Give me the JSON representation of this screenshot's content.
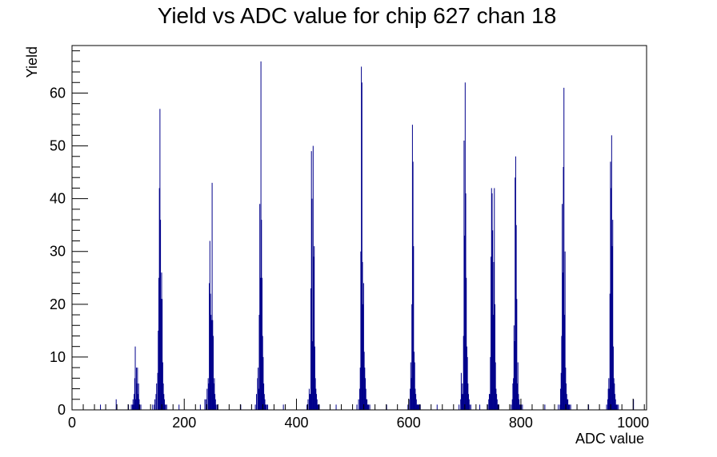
{
  "chart_data": {
    "type": "bar",
    "title": "Yield vs ADC value for chip 627 chan 18",
    "xlabel": "ADC value",
    "ylabel": "Yield",
    "xlim": [
      0,
      1024
    ],
    "ylim": [
      0,
      69
    ],
    "x_ticks": [
      0,
      200,
      400,
      600,
      800,
      1000
    ],
    "y_ticks": [
      0,
      10,
      20,
      30,
      40,
      50,
      60
    ],
    "grid": false,
    "legend": "none",
    "bin_width": 1,
    "color": "#00008b",
    "x": [
      50,
      78,
      100,
      105,
      107,
      108,
      109,
      110,
      111,
      112,
      113,
      114,
      115,
      116,
      117,
      118,
      119,
      120,
      122,
      143,
      146,
      147,
      149,
      150,
      152,
      153,
      154,
      155,
      156,
      157,
      158,
      159,
      160,
      161,
      162,
      163,
      164,
      165,
      166,
      168,
      190,
      228,
      236,
      238,
      240,
      242,
      243,
      244,
      245,
      246,
      247,
      248,
      249,
      250,
      251,
      252,
      253,
      254,
      255,
      256,
      258,
      300,
      326,
      328,
      330,
      331,
      332,
      333,
      334,
      335,
      336,
      337,
      338,
      339,
      340,
      341,
      342,
      343,
      344,
      345,
      346,
      348,
      376,
      418,
      420,
      422,
      423,
      424,
      425,
      426,
      427,
      428,
      429,
      430,
      431,
      432,
      433,
      434,
      435,
      436,
      437,
      438,
      440,
      470,
      507,
      510,
      512,
      513,
      514,
      515,
      516,
      517,
      518,
      519,
      520,
      521,
      522,
      523,
      524,
      525,
      526,
      527,
      528,
      530,
      560,
      598,
      600,
      602,
      603,
      604,
      605,
      606,
      607,
      608,
      609,
      610,
      611,
      612,
      613,
      614,
      615,
      616,
      617,
      618,
      620,
      650,
      689,
      692,
      693,
      694,
      695,
      696,
      697,
      698,
      699,
      700,
      701,
      702,
      703,
      704,
      705,
      706,
      707,
      708,
      710,
      726,
      740,
      742,
      743,
      744,
      745,
      746,
      747,
      748,
      749,
      750,
      751,
      752,
      753,
      754,
      755,
      756,
      757,
      758,
      760,
      782,
      784,
      785,
      786,
      787,
      788,
      789,
      790,
      791,
      792,
      793,
      794,
      795,
      796,
      797,
      798,
      799,
      800,
      802,
      842,
      866,
      869,
      870,
      871,
      872,
      873,
      874,
      875,
      876,
      877,
      878,
      879,
      880,
      881,
      882,
      883,
      884,
      885,
      886,
      888,
      920,
      952,
      954,
      955,
      956,
      957,
      958,
      959,
      960,
      961,
      962,
      963,
      964,
      965,
      966,
      967,
      968,
      969,
      970,
      971,
      973,
      1000
    ],
    "values": [
      1,
      2,
      1,
      1,
      1,
      2,
      1,
      3,
      6,
      12,
      2,
      8,
      5,
      8,
      3,
      5,
      2,
      1,
      1,
      1,
      1,
      2,
      3,
      5,
      7,
      15,
      25,
      42,
      57,
      36,
      21,
      26,
      21,
      9,
      5,
      3,
      2,
      1,
      1,
      1,
      1,
      1,
      2,
      2,
      4,
      6,
      5,
      24,
      32,
      22,
      18,
      17,
      43,
      17,
      14,
      5,
      6,
      3,
      2,
      1,
      1,
      1,
      1,
      3,
      6,
      8,
      4,
      18,
      39,
      25,
      66,
      36,
      25,
      14,
      10,
      5,
      3,
      2,
      1,
      1,
      1,
      1,
      1,
      1,
      2,
      4,
      3,
      3,
      23,
      49,
      40,
      13,
      50,
      29,
      31,
      12,
      6,
      4,
      3,
      2,
      1,
      1,
      1,
      1,
      1,
      2,
      4,
      8,
      30,
      65,
      62,
      28,
      20,
      24,
      11,
      8,
      6,
      4,
      2,
      2,
      1,
      1,
      1,
      1,
      1,
      1,
      2,
      4,
      9,
      6,
      20,
      54,
      47,
      31,
      11,
      9,
      4,
      3,
      2,
      1,
      1,
      1,
      1,
      1,
      1,
      1,
      1,
      2,
      7,
      3,
      5,
      3,
      14,
      51,
      33,
      62,
      41,
      25,
      12,
      10,
      5,
      3,
      2,
      1,
      1,
      1,
      1,
      2,
      3,
      3,
      10,
      29,
      42,
      41,
      34,
      18,
      28,
      42,
      20,
      9,
      4,
      3,
      2,
      1,
      1,
      1,
      2,
      5,
      6,
      16,
      13,
      44,
      48,
      35,
      21,
      5,
      9,
      3,
      2,
      1,
      1,
      1,
      1,
      1,
      1,
      1,
      1,
      4,
      7,
      14,
      39,
      26,
      46,
      61,
      18,
      30,
      8,
      5,
      3,
      2,
      2,
      1,
      1,
      1,
      1,
      1,
      1,
      2,
      4,
      6,
      4,
      22,
      47,
      42,
      52,
      31,
      36,
      12,
      6,
      5,
      3,
      2,
      1,
      1,
      1,
      1,
      2
    ]
  }
}
